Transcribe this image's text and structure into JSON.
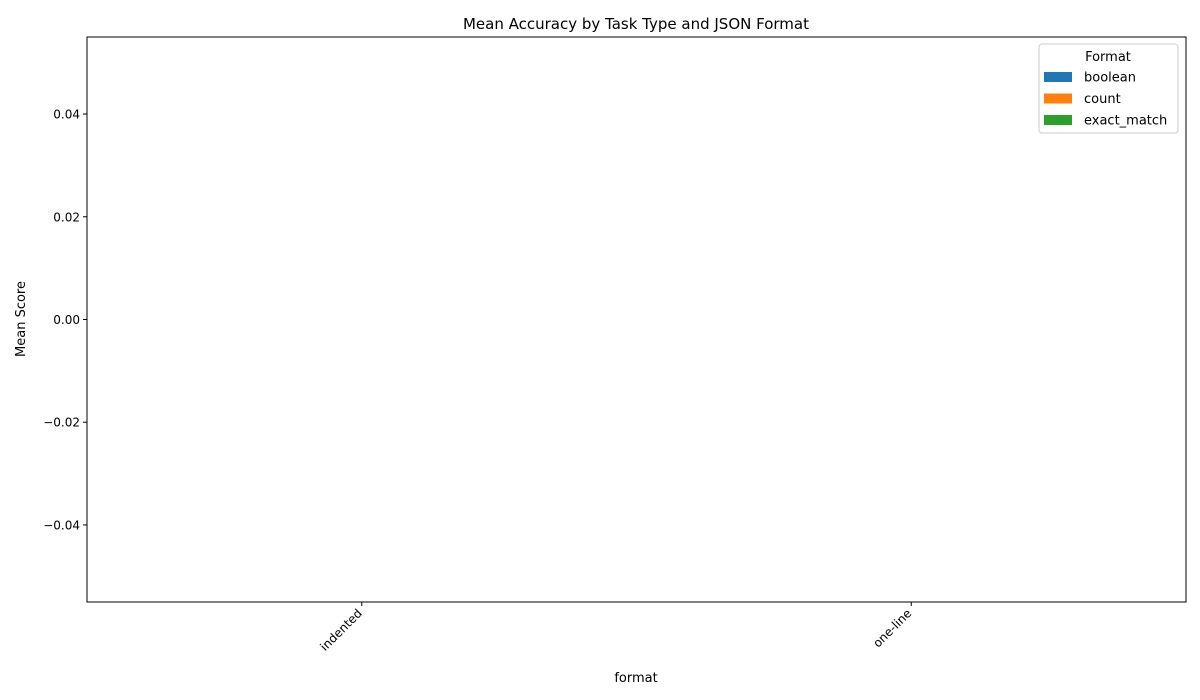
{
  "chart_data": {
    "type": "bar",
    "title": "Mean Accuracy by Task Type and JSON Format",
    "xlabel": "format",
    "ylabel": "Mean Score",
    "categories": [
      "indented",
      "one-line"
    ],
    "series": [
      {
        "name": "boolean",
        "values": [
          0,
          0
        ],
        "color": "#1f77b4"
      },
      {
        "name": "count",
        "values": [
          0,
          0
        ],
        "color": "#ff7f0e"
      },
      {
        "name": "exact_match",
        "values": [
          0,
          0
        ],
        "color": "#2ca02c"
      }
    ],
    "ylim": [
      -0.055,
      0.055
    ],
    "yticks": [
      -0.04,
      -0.02,
      0.0,
      0.02,
      0.04
    ],
    "ytick_labels": [
      "−0.04",
      "−0.02",
      "0.00",
      "0.02",
      "0.04"
    ],
    "xtick_rotation": "45 degrees",
    "grid": false,
    "legend": {
      "title": "Format",
      "placement": "top-right"
    }
  }
}
